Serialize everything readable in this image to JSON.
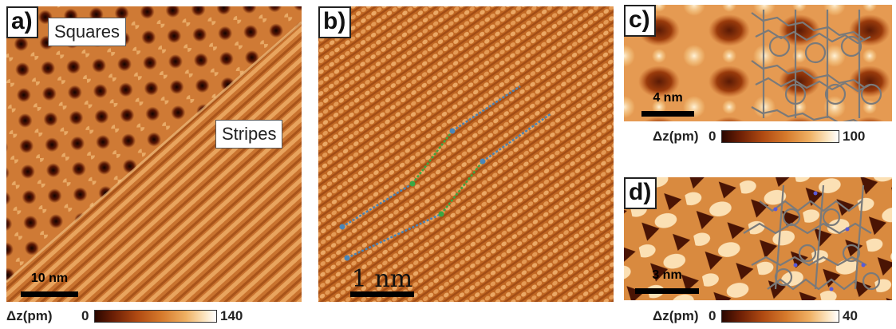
{
  "colors": {
    "stm_dark": "#3a0c02",
    "stm_mid": "#c46a24",
    "stm_light": "#fde7c4",
    "arrow_blue": "#4a86b8",
    "arrow_green": "#3aa844"
  },
  "panels": {
    "a": {
      "label": "a)",
      "tag_squares": "Squares",
      "tag_stripes": "Stripes",
      "scale_text": "10 nm",
      "colorbar": {
        "quantity": "Δz(pm)",
        "min": "0",
        "max": "140"
      }
    },
    "b": {
      "label": "b)",
      "scale_text": "1 nm"
    },
    "c": {
      "label": "c)",
      "scale_text": "4 nm",
      "colorbar": {
        "quantity": "Δz(pm)",
        "min": "0",
        "max": "100"
      }
    },
    "d": {
      "label": "d)",
      "scale_text": "3 nm",
      "colorbar": {
        "quantity": "Δz(pm)",
        "min": "0",
        "max": "40"
      }
    }
  }
}
